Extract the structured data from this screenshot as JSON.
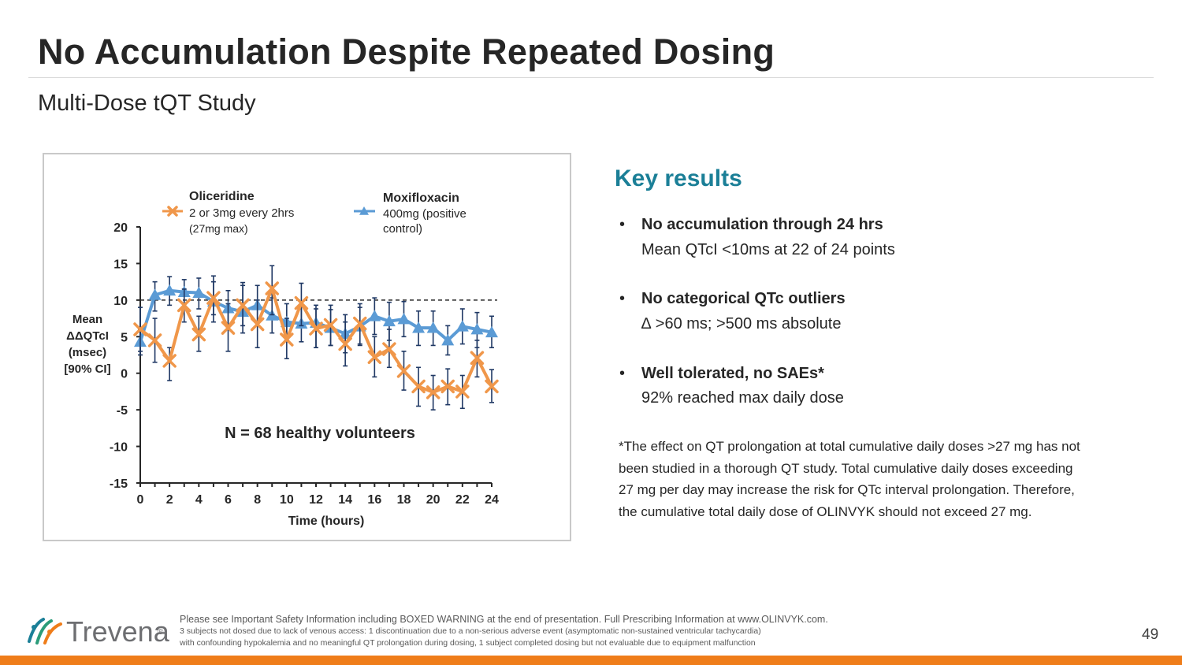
{
  "slide": {
    "title": "No Accumulation Despite Repeated Dosing",
    "subtitle": "Multi-Dose tQT Study",
    "page_number": "49"
  },
  "key_results": {
    "title": "Key results",
    "bullet_char": "•",
    "items": [
      {
        "head": "No accumulation through 24 hrs",
        "sub": "Mean QTcI <10ms at 22 of 24 points"
      },
      {
        "head": "No categorical QTc outliers",
        "sub": "∆ >60 ms;  >500 ms absolute"
      },
      {
        "head": "Well tolerated, no SAEs*",
        "sub": "92% reached max daily dose"
      }
    ],
    "footnote": "*The effect on QT prolongation at total cumulative daily doses >27 mg has not been studied in a thorough QT study. Total cumulative daily doses exceeding 27 mg per day may increase the risk for QTc interval prolongation. Therefore, the cumulative total daily dose of OLINVYK should not exceed 27 mg."
  },
  "footer": {
    "line1": "Please see Important Safety Information including BOXED WARNING at the end of presentation. Full Prescribing Information at www.OLINVYK.com.",
    "line2": "3 subjects not dosed due to lack of venous access: 1 discontinuation due to a non-serious adverse event (asymptomatic non-sustained ventricular tachycardia)",
    "line3": "with confounding hypokalemia and no meaningful QT prolongation during dosing, 1 subject completed dosing but not evaluable due to equipment malfunction",
    "logo_text": "Trevena",
    "logo_mark": "®"
  },
  "colors": {
    "oliceridine": "#f0974a",
    "moxifloxacin": "#5b9bd5",
    "accent": "#1b7f97",
    "brand_orange": "#ef7d1a"
  },
  "chart_data": {
    "type": "line",
    "x": [
      0,
      1,
      2,
      3,
      4,
      5,
      6,
      7,
      8,
      9,
      10,
      11,
      12,
      13,
      14,
      15,
      16,
      17,
      18,
      19,
      20,
      21,
      22,
      23,
      24
    ],
    "xticks": [
      0,
      2,
      4,
      6,
      8,
      10,
      12,
      14,
      16,
      18,
      20,
      22,
      24
    ],
    "xlabel": "Time (hours)",
    "ylabel_lines": [
      "Mean",
      "ΔΔQTcI",
      "(msec)",
      "[90% CI]"
    ],
    "ylim": [
      -15,
      20
    ],
    "yticks": [
      -15,
      -10,
      -5,
      0,
      5,
      10,
      15,
      20
    ],
    "reference_line": {
      "y": 10,
      "style": "dashed"
    },
    "annotation": "N = 68 healthy volunteers",
    "legend_placement": "top",
    "series": [
      {
        "name": "Oliceridine",
        "legend_lines": [
          "2 or 3mg every 2hrs",
          "(27mg max)"
        ],
        "marker": "x",
        "values": [
          6.0,
          4.5,
          1.7,
          9.3,
          5.3,
          10.3,
          6.2,
          9.3,
          6.7,
          11.6,
          4.6,
          9.6,
          6.1,
          6.6,
          4.0,
          6.8,
          2.2,
          3.3,
          0.3,
          -1.8,
          -2.6,
          -1.8,
          -2.5,
          2.1,
          -1.8
        ],
        "ci_low": [
          3.0,
          1.5,
          -1.0,
          7.0,
          3.0,
          8.0,
          3.0,
          6.5,
          3.5,
          8.0,
          2.0,
          6.5,
          3.5,
          3.8,
          1.0,
          4.0,
          -0.5,
          0.8,
          -2.3,
          -4.5,
          -5.0,
          -4.3,
          -4.8,
          -0.5,
          -4.0
        ],
        "ci_high": [
          9.0,
          7.5,
          3.5,
          11.5,
          7.8,
          12.5,
          9.5,
          12.0,
          10.0,
          14.7,
          7.5,
          12.3,
          8.8,
          9.3,
          7.0,
          9.5,
          5.0,
          6.0,
          3.0,
          0.8,
          -0.3,
          0.6,
          -0.3,
          4.5,
          0.5
        ]
      },
      {
        "name": "Moxifloxacin",
        "legend_lines": [
          "400mg (positive",
          "control)"
        ],
        "marker": "triangle",
        "values": [
          4.3,
          10.7,
          11.3,
          11.1,
          11.0,
          9.8,
          8.9,
          8.4,
          9.3,
          7.9,
          7.0,
          6.8,
          6.9,
          6.2,
          5.4,
          6.4,
          7.8,
          7.1,
          7.4,
          6.2,
          6.2,
          4.5,
          6.4,
          6.0,
          5.6
        ],
        "ci_low": [
          2.5,
          8.5,
          9.3,
          9.0,
          8.8,
          7.0,
          6.5,
          5.5,
          6.5,
          5.5,
          4.5,
          4.3,
          3.5,
          3.8,
          2.8,
          3.8,
          5.3,
          4.5,
          5.0,
          3.8,
          3.8,
          2.5,
          4.0,
          3.5,
          3.5
        ],
        "ci_high": [
          6.0,
          12.5,
          13.2,
          12.8,
          13.0,
          13.3,
          11.3,
          12.4,
          12.0,
          10.3,
          9.5,
          9.3,
          9.3,
          8.7,
          8.0,
          9.0,
          10.3,
          9.7,
          9.8,
          8.5,
          8.5,
          6.5,
          8.8,
          8.3,
          7.8
        ]
      }
    ]
  }
}
